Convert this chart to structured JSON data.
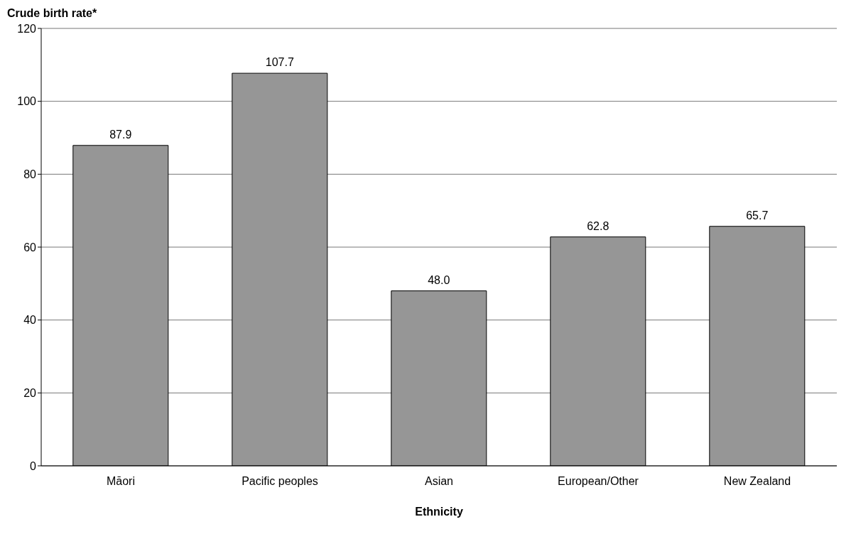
{
  "chart_data": {
    "type": "bar",
    "ylabel": "Crude birth rate*",
    "xlabel": "Ethnicity",
    "categories": [
      "Māori",
      "Pacific peoples",
      "Asian",
      "European/Other",
      "New Zealand"
    ],
    "values": [
      87.9,
      107.7,
      48.0,
      62.8,
      65.7
    ],
    "value_labels": [
      "87.9",
      "107.7",
      "48.0",
      "62.8",
      "65.7"
    ],
    "color": "#969696",
    "ylim": [
      0,
      120
    ],
    "yticks": [
      0,
      20,
      40,
      60,
      80,
      100,
      120
    ],
    "grid": "y"
  }
}
